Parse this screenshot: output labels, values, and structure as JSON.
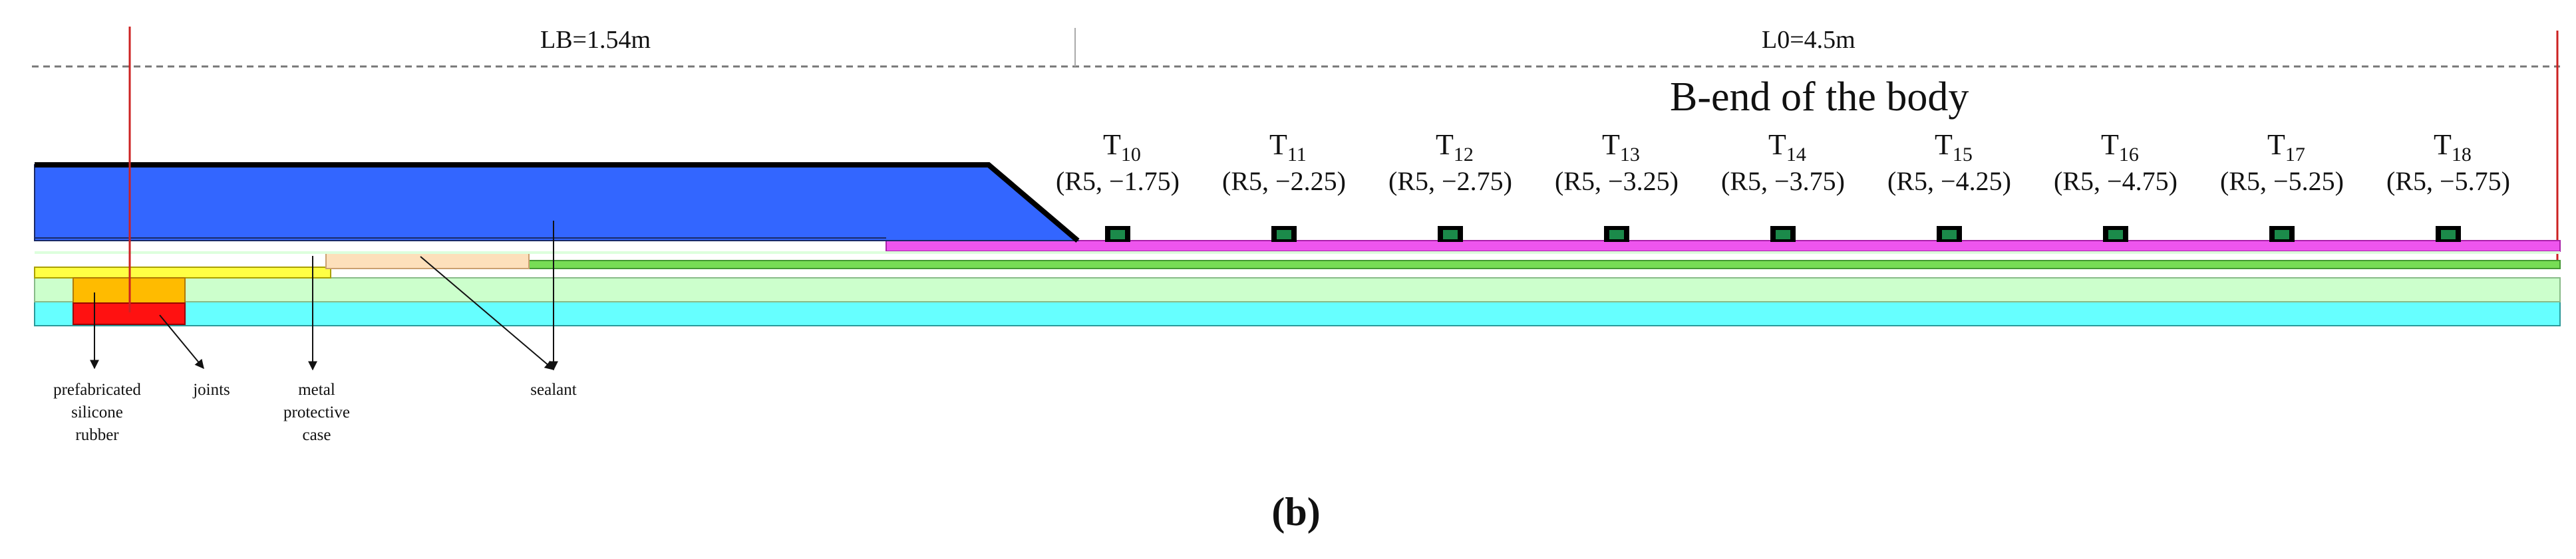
{
  "dimensions": {
    "lb": "LB=1.54m",
    "l0": "L0=4.5m"
  },
  "title": "B-end of the body",
  "caption": {
    "open": "(",
    "letter": "b",
    "close": ")"
  },
  "annotations": {
    "prefabricated_line1": "prefabricated",
    "prefabricated_line2": "silicone",
    "prefabricated_line3": "rubber",
    "joints": "joints",
    "metal_line1": "metal",
    "metal_line2": "protective",
    "metal_line3": "case",
    "sealant": "sealant"
  },
  "sensors": [
    {
      "letter": "T",
      "index": "10",
      "coord": "(R5, −1.75)"
    },
    {
      "letter": "T",
      "index": "11",
      "coord": "(R5, −2.25)"
    },
    {
      "letter": "T",
      "index": "12",
      "coord": "(R5, −2.75)"
    },
    {
      "letter": "T",
      "index": "13",
      "coord": "(R5, −3.25)"
    },
    {
      "letter": "T",
      "index": "14",
      "coord": "(R5, −3.75)"
    },
    {
      "letter": "T",
      "index": "15",
      "coord": "(R5, −4.25)"
    },
    {
      "letter": "T",
      "index": "16",
      "coord": "(R5, −4.75)"
    },
    {
      "letter": "T",
      "index": "17",
      "coord": "(R5, −5.25)"
    },
    {
      "letter": "T",
      "index": "18",
      "coord": "(R5, −5.75)"
    }
  ],
  "colors": {
    "blue_body": "#3366ff",
    "magenta_strip": "#ee55ee",
    "green_strip": "#77dd55",
    "pale_green": "#ccffcc",
    "cyan_base": "#66ffff",
    "yellow_strip": "#ffff44",
    "peach_strip": "#fde0bb",
    "orange_block": "#ffbb00",
    "red_block": "#ff1111",
    "sensor_fill": "#1b8a4a",
    "red_line": "#cc2222"
  }
}
